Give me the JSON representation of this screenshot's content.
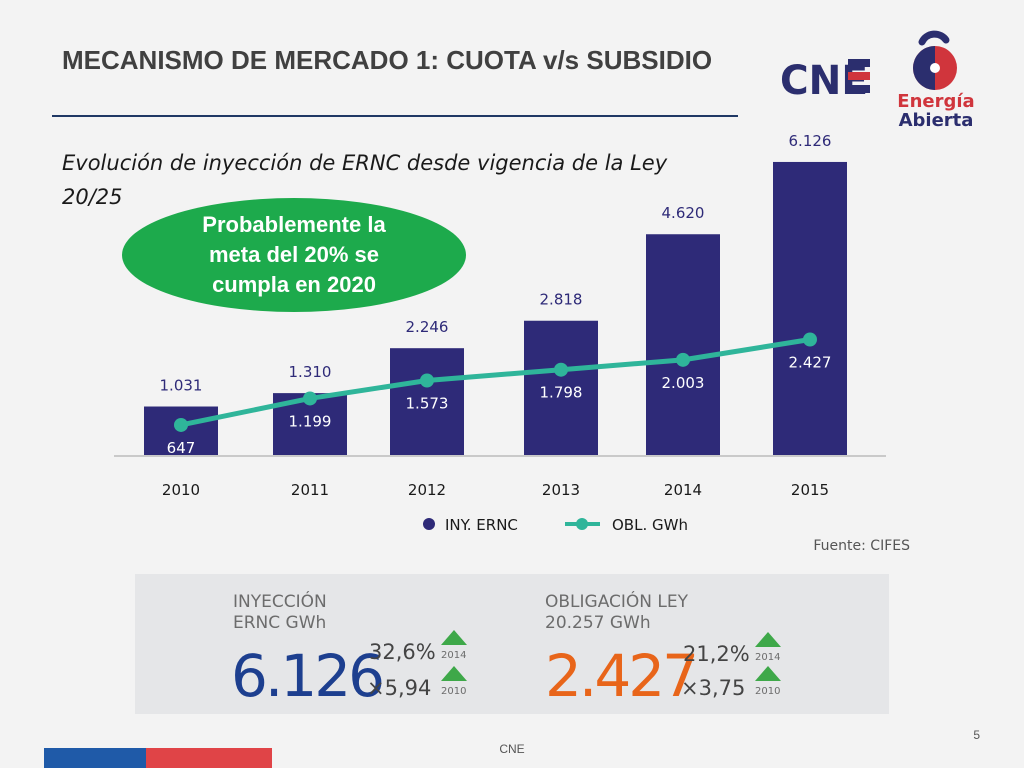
{
  "slide": {
    "title": "MECANISMO DE MERCADO 1: CUOTA v/s SUBSIDIO",
    "subtitle": "Evolución de inyección de ERNC desde vigencia de la Ley 20/25",
    "callout": "Probablemente la\nmeta del 20% se\ncumpla en 2020",
    "source": "Fuente: CIFES",
    "footer": "CNE",
    "page_number": "5"
  },
  "logos": {
    "cne": "CNE",
    "energia_abierta_line1": "Energía",
    "energia_abierta_line2": "Abierta"
  },
  "colors": {
    "bar": "#2e2a78",
    "line": "#2fb59a",
    "callout": "#1daa4c",
    "title_rule": "#1f3864",
    "injection_value": "#1d3f8f",
    "obligation_value": "#e8651a",
    "arrow_up": "#3ea849"
  },
  "chart_data": {
    "type": "bar",
    "categories": [
      "2010",
      "2011",
      "2012",
      "2013",
      "2014",
      "2015"
    ],
    "series": [
      {
        "name": "INY. ERNC",
        "type": "bar",
        "values": [
          1031,
          1310,
          2246,
          2818,
          4620,
          6126
        ],
        "labels": [
          "1.031",
          "1.310",
          "2.246",
          "2.818",
          "4.620",
          "6.126"
        ]
      },
      {
        "name": "OBL. GWh",
        "type": "line",
        "values": [
          647,
          1199,
          1573,
          1798,
          2003,
          2427
        ],
        "labels": [
          "647",
          "1.199",
          "1.573",
          "1.798",
          "2.003",
          "2.427"
        ]
      }
    ],
    "ylim": [
      0,
      6500
    ],
    "grid": false,
    "legend": "bottom"
  },
  "stats": {
    "injection": {
      "label": "INYECCIÓN\nERNC GWh",
      "value": "6.126",
      "pct": "32,6%",
      "pct_year": "2014",
      "multiplier": "×5,94",
      "mult_year": "2010"
    },
    "obligation": {
      "label": "OBLIGACIÓN LEY\n20.257 GWh",
      "value": "2.427",
      "pct": "21,2%",
      "pct_year": "2014",
      "multiplier": "×3,75",
      "mult_year": "2010"
    }
  }
}
